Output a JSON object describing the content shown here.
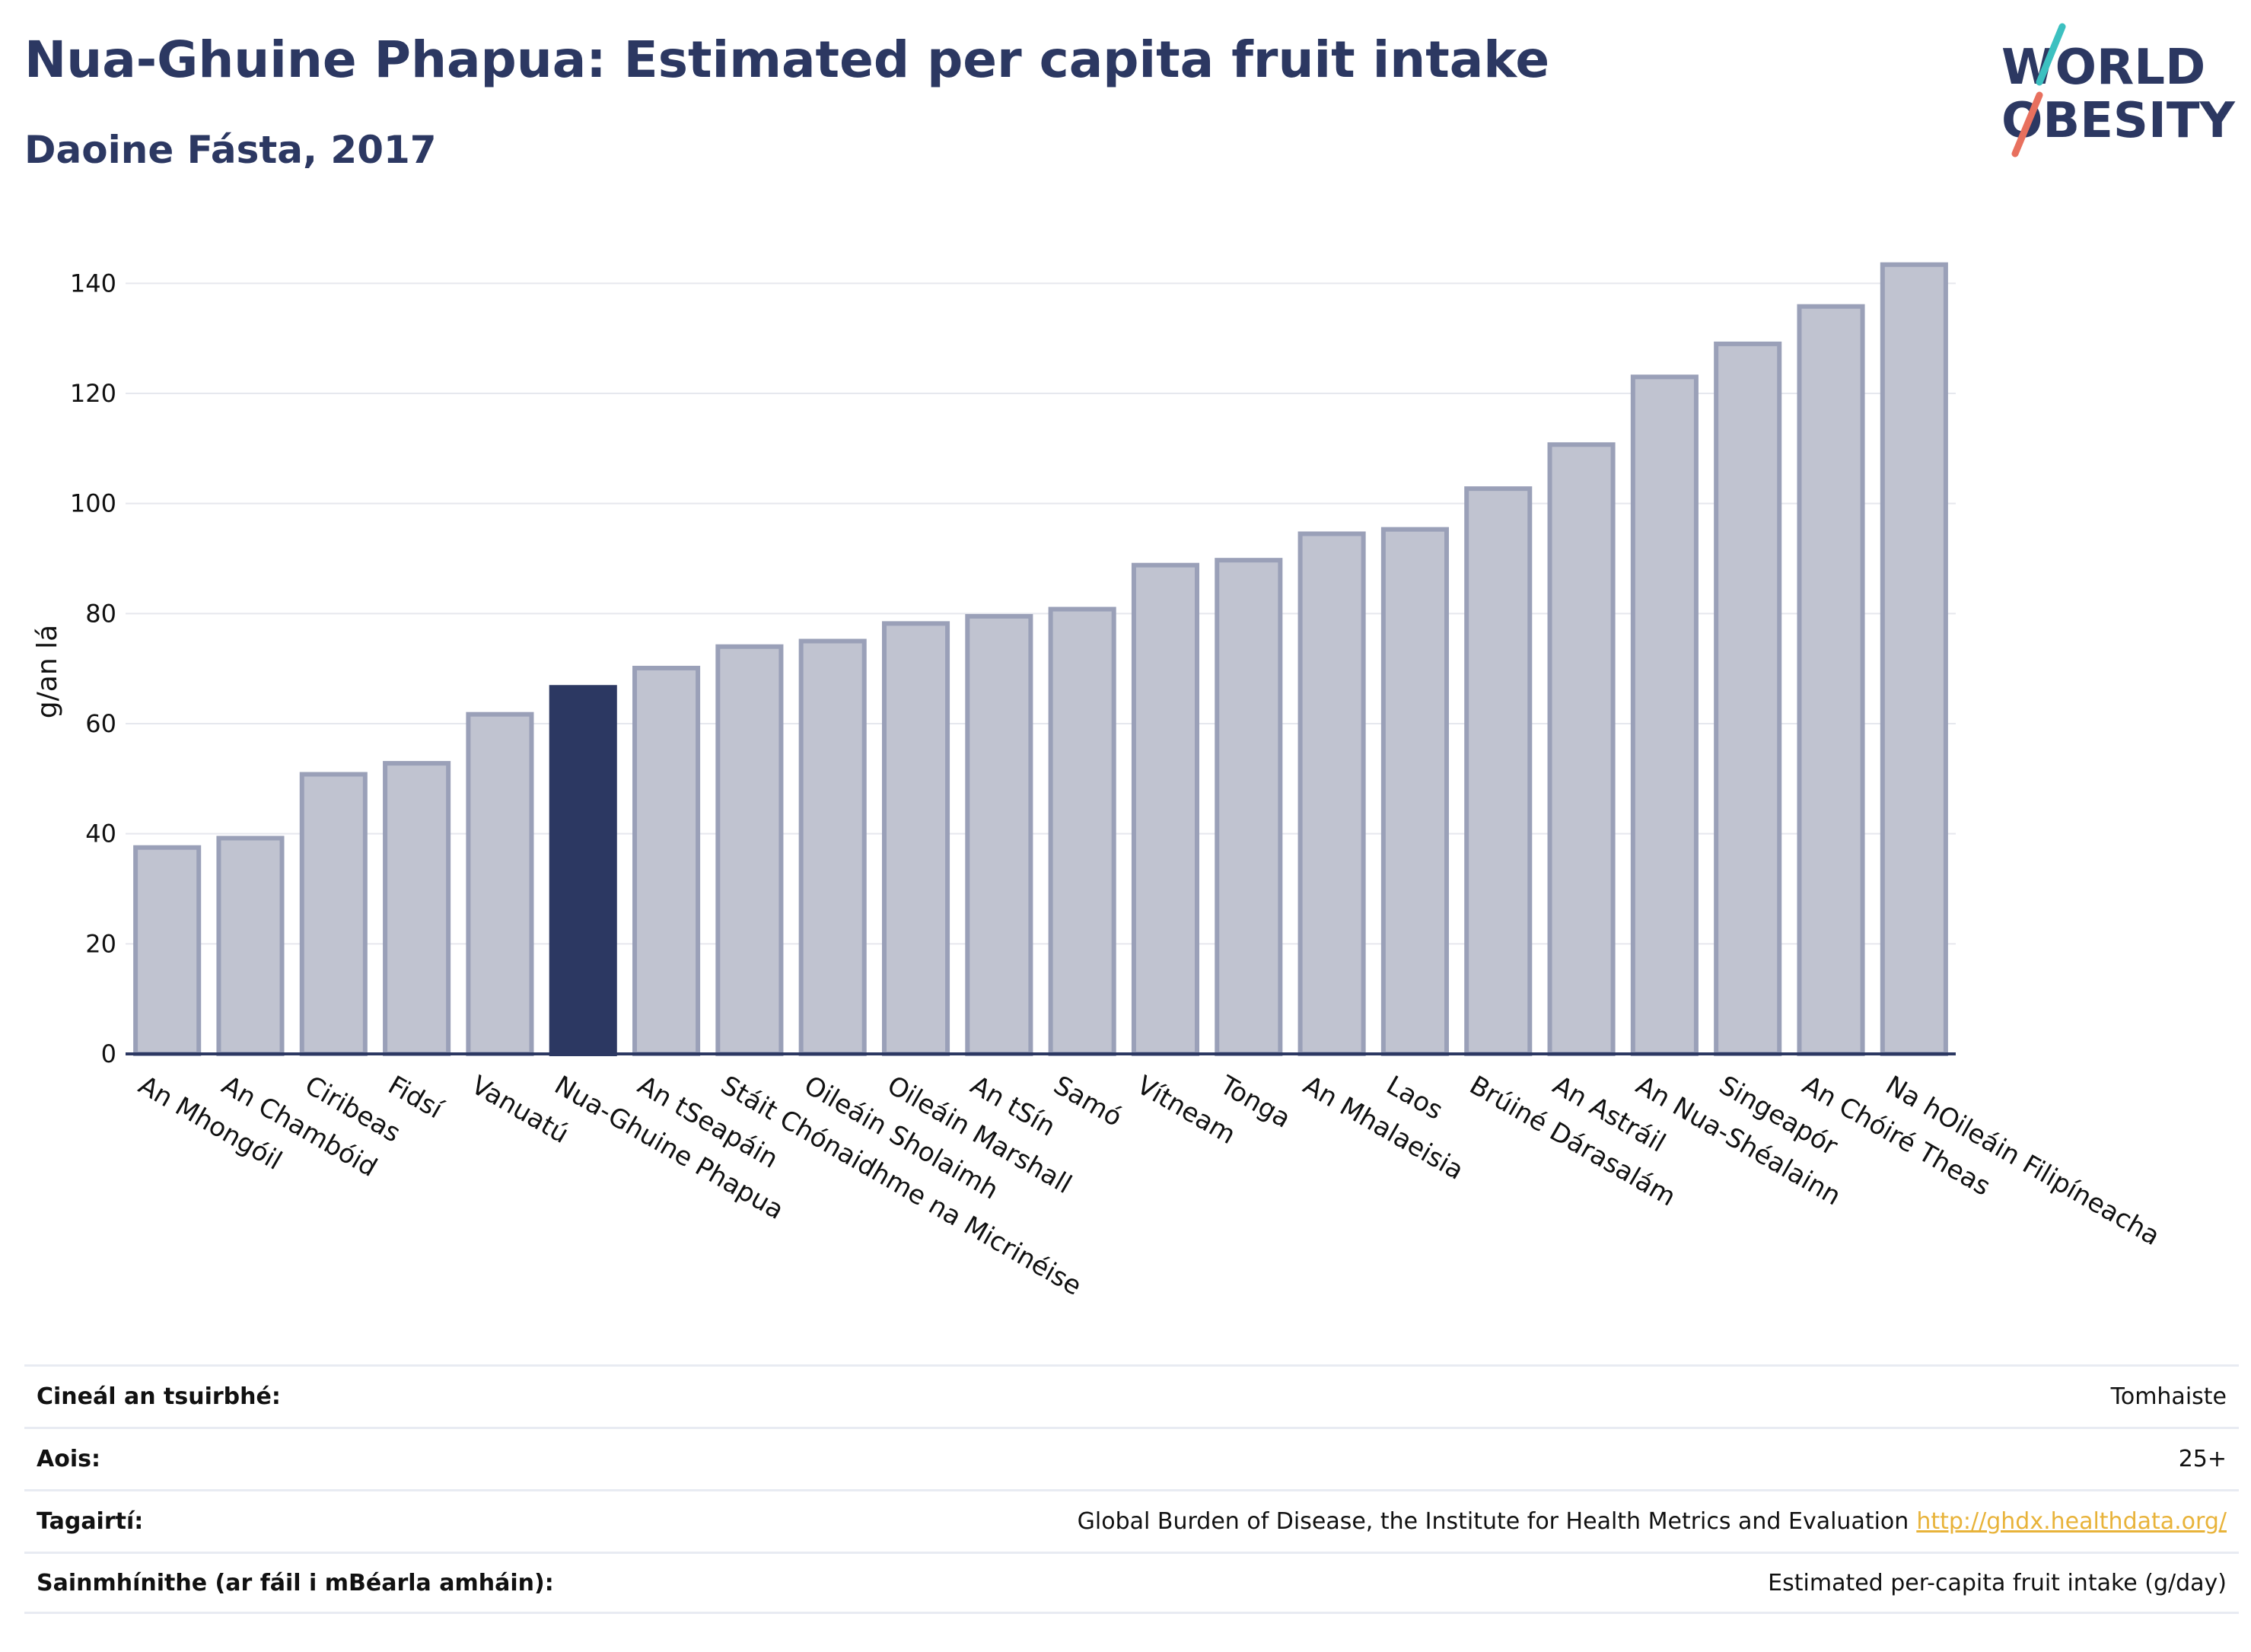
{
  "header": {
    "title": "Nua-Ghuine Phapua: Estimated per capita fruit intake",
    "subtitle": "Daoine Fásta, 2017"
  },
  "logo": {
    "line1": "WORLD",
    "line2": "OBESITY",
    "colors": {
      "text": "#2c3862",
      "slash_top": "#3cc0c0",
      "slash_bottom": "#e8705e"
    }
  },
  "chart_data": {
    "type": "bar",
    "ylabel": "g/an lá",
    "xlabel": "",
    "ylim": [
      0,
      150
    ],
    "yticks": [
      0,
      20,
      40,
      60,
      80,
      100,
      120,
      140
    ],
    "grid": true,
    "categories": [
      "An Mhongóil",
      "An Chambóid",
      "Ciribeas",
      "Fidsí",
      "Vanuatú",
      "Nua-Ghuine Phapua",
      "An tSeapáin",
      "Stáit Chónaidhme na Micrinéise",
      "Oileáin Sholaimh",
      "Oileáin Marshall",
      "An tSín",
      "Samó",
      "Vítneam",
      "Tonga",
      "An Mhalaeisia",
      "Laos",
      "Brúiné Dárasalám",
      "An Astráil",
      "An Nua-Shéalainn",
      "Singeapór",
      "An Chóiré Theas",
      "Na hOileáin Filipíneacha"
    ],
    "values": [
      37.5,
      39.2,
      50.8,
      52.8,
      61.7,
      66.6,
      70.1,
      74.0,
      75.0,
      78.2,
      79.5,
      80.8,
      88.8,
      89.7,
      94.5,
      95.3,
      102.7,
      110.7,
      123.0,
      129.0,
      135.8,
      143.4
    ],
    "highlight": "Nua-Ghuine Phapua",
    "colors": {
      "bar": "#c0c3d0",
      "bar_edge": "#9aa0b8",
      "highlight": "#2c3862",
      "axis": "#2c3862"
    }
  },
  "info": {
    "survey_type_label": "Cineál an tsuirbhé:",
    "survey_type_value": "Tomhaiste",
    "age_label": "Aois:",
    "age_value": "25+",
    "references_label": "Tagairtí:",
    "references_value": "Global Burden of Disease, the Institute for Health Metrics and Evaluation",
    "references_link": "http://ghdx.healthdata.org/",
    "definitions_label": "Sainmhínithe (ar fáil i mBéarla amháin):",
    "definitions_value": "Estimated per-capita fruit intake (g/day)"
  }
}
